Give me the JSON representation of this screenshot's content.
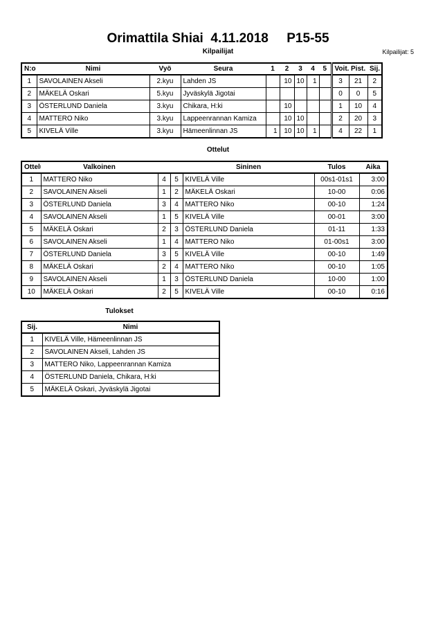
{
  "header": {
    "title": "Orimattila Shiai  4.11.2018     P15-55",
    "section": "Kilpailijat",
    "count_label": "Kilpailijat: 5"
  },
  "competitors": {
    "columns": [
      "N:o",
      "Nimi",
      "Vyö",
      "Seura",
      "1",
      "2",
      "3",
      "4",
      "5",
      "Voit.",
      "Pist.",
      "Sij."
    ],
    "rows": [
      [
        "1",
        "SAVOLAINEN Akseli",
        "2.kyu",
        "Lahden JS",
        "",
        "10",
        "10",
        "1",
        "",
        "3",
        "21",
        "2"
      ],
      [
        "2",
        "MÄKELÄ Oskari",
        "5.kyu",
        "Jyväskylä Jigotai",
        "",
        "",
        "",
        "",
        "",
        "0",
        "0",
        "5"
      ],
      [
        "3",
        "ÖSTERLUND Daniela",
        "3.kyu",
        "Chikara, H:ki",
        "",
        "10",
        "",
        "",
        "",
        "1",
        "10",
        "4"
      ],
      [
        "4",
        "MATTERO Niko",
        "3.kyu",
        "Lappeenrannan Kamiza",
        "",
        "10",
        "10",
        "",
        "",
        "2",
        "20",
        "3"
      ],
      [
        "5",
        "KIVELÄ Ville",
        "3.kyu",
        "Hämeenlinnan JS",
        "1",
        "10",
        "10",
        "1",
        "",
        "4",
        "22",
        "1"
      ]
    ]
  },
  "matches": {
    "title": "Ottelut",
    "columns": [
      "Ottelu",
      "Valkoinen",
      "",
      "",
      "Sininen",
      "Tulos",
      "Aika"
    ],
    "rows": [
      [
        "1",
        "MATTERO Niko",
        "4",
        "5",
        "KIVELÄ Ville",
        "00s1-01s1",
        "3:00"
      ],
      [
        "2",
        "SAVOLAINEN Akseli",
        "1",
        "2",
        "MÄKELÄ Oskari",
        "10-00",
        "0:06"
      ],
      [
        "3",
        "ÖSTERLUND Daniela",
        "3",
        "4",
        "MATTERO Niko",
        "00-10",
        "1:24"
      ],
      [
        "4",
        "SAVOLAINEN Akseli",
        "1",
        "5",
        "KIVELÄ Ville",
        "00-01",
        "3:00"
      ],
      [
        "5",
        "MÄKELÄ Oskari",
        "2",
        "3",
        "ÖSTERLUND Daniela",
        "01-11",
        "1:33"
      ],
      [
        "6",
        "SAVOLAINEN Akseli",
        "1",
        "4",
        "MATTERO Niko",
        "01-00s1",
        "3:00"
      ],
      [
        "7",
        "ÖSTERLUND Daniela",
        "3",
        "5",
        "KIVELÄ Ville",
        "00-10",
        "1:49"
      ],
      [
        "8",
        "MÄKELÄ Oskari",
        "2",
        "4",
        "MATTERO Niko",
        "00-10",
        "1:05"
      ],
      [
        "9",
        "SAVOLAINEN Akseli",
        "1",
        "3",
        "ÖSTERLUND Daniela",
        "10-00",
        "1:00"
      ],
      [
        "10",
        "MÄKELÄ Oskari",
        "2",
        "5",
        "KIVELÄ Ville",
        "00-10",
        "0:16"
      ]
    ]
  },
  "results": {
    "title": "Tulokset",
    "columns": [
      "Sij.",
      "Nimi"
    ],
    "rows": [
      [
        "1",
        "KIVELÄ Ville, Hämeenlinnan JS"
      ],
      [
        "2",
        "SAVOLAINEN Akseli, Lahden JS"
      ],
      [
        "3",
        "MATTERO Niko, Lappeenrannan Kamiza"
      ],
      [
        "4",
        "ÖSTERLUND Daniela, Chikara, H:ki"
      ],
      [
        "5",
        "MÄKELÄ Oskari, Jyväskylä Jigotai"
      ]
    ]
  }
}
